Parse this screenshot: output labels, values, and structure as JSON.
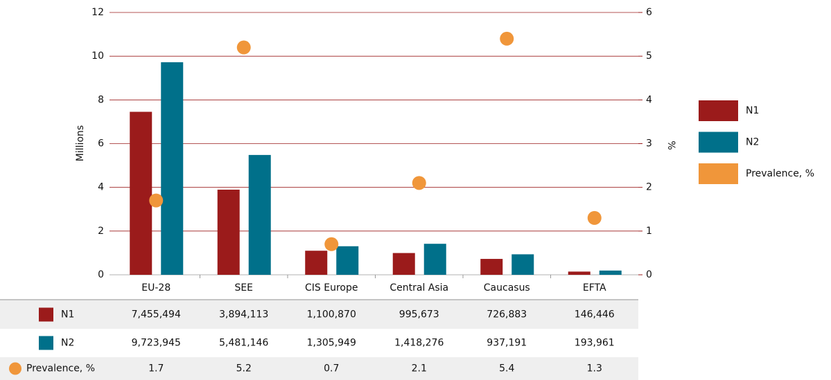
{
  "chart_data": {
    "type": "bar",
    "categories": [
      "EU-28",
      "SEE",
      "CIS Europe",
      "Central Asia",
      "Caucasus",
      "EFTA"
    ],
    "y_label": "Millions",
    "y2_label": "%",
    "ylim": [
      0,
      12
    ],
    "yticks": [
      0,
      2,
      4,
      6,
      8,
      10,
      12
    ],
    "y2lim": [
      0,
      6
    ],
    "y2ticks": [
      0,
      1,
      2,
      3,
      4,
      5,
      6
    ],
    "grid": true,
    "legend": "right",
    "series": [
      {
        "name": "N1",
        "color": "#9b1b1b",
        "values": [
          7.455494,
          3.894113,
          1.10087,
          0.995673,
          0.726883,
          0.146446
        ],
        "value_labels": [
          "7,455,494",
          "3,894,113",
          "1,100,870",
          "995,673",
          "726,883",
          "146,446"
        ]
      },
      {
        "name": "N2",
        "color": "#00708a",
        "values": [
          9.723945,
          5.481146,
          1.305949,
          1.418276,
          0.937191,
          0.193961
        ],
        "value_labels": [
          "9,723,945",
          "5,481,146",
          "1,305,949",
          "1,418,276",
          "937,191",
          "193,961"
        ]
      },
      {
        "name": "Prevalence, %",
        "type": "scatter",
        "axis": "y2",
        "color": "#f0963a",
        "values": [
          1.7,
          5.2,
          0.7,
          2.1,
          5.4,
          1.3
        ]
      }
    ]
  }
}
